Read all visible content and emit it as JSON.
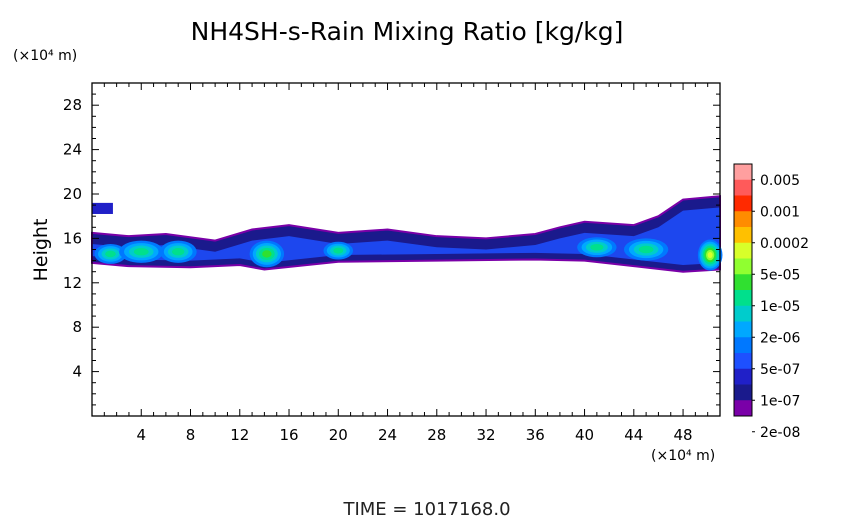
{
  "chart_data": {
    "type": "heatmap",
    "title": "NH4SH-s-Rain Mixing Ratio [kg/kg]",
    "ylabel": "Height",
    "y_unit": "(×10⁴ m)",
    "x_unit": "(×10⁴ m)",
    "xlim": [
      0,
      51
    ],
    "ylim": [
      0,
      30
    ],
    "x_ticks": [
      "4",
      "8",
      "12",
      "16",
      "20",
      "24",
      "28",
      "32",
      "36",
      "40",
      "44",
      "48"
    ],
    "y_ticks": [
      "4",
      "8",
      "12",
      "16",
      "20",
      "24",
      "28"
    ],
    "x_tick_values": [
      4,
      8,
      12,
      16,
      20,
      24,
      28,
      32,
      36,
      40,
      44,
      48
    ],
    "y_tick_values": [
      4,
      8,
      12,
      16,
      20,
      24,
      28
    ],
    "colorbar": {
      "labels": [
        "0.005",
        "0.001",
        "0.0002",
        "5e-05",
        "1e-05",
        "2e-06",
        "5e-07",
        "1e-07",
        "2e-08"
      ],
      "colors": [
        "#ff9f9f",
        "#ff5a5a",
        "#ff2a00",
        "#ff8c00",
        "#ffc000",
        "#d8ff2a",
        "#90ff30",
        "#30e030",
        "#00e08c",
        "#00cccc",
        "#00a8ff",
        "#0078ff",
        "#1e50ff",
        "#2020c8",
        "#1a1a8c",
        "#7a00a8"
      ]
    },
    "layer": {
      "description_values": "cloud layer between about 13 and 17 height units across the domain, thicker near x=40-51",
      "outline": [
        [
          0,
          13.8
        ],
        [
          3,
          13.5
        ],
        [
          8,
          13.4
        ],
        [
          12,
          13.6
        ],
        [
          14,
          13.2
        ],
        [
          20,
          13.9
        ],
        [
          28,
          14.0
        ],
        [
          36,
          14.1
        ],
        [
          40,
          14.0
        ],
        [
          44,
          13.5
        ],
        [
          48,
          13.0
        ],
        [
          51,
          13.2
        ]
      ],
      "top": [
        [
          0,
          16.5
        ],
        [
          3,
          16.2
        ],
        [
          6,
          16.4
        ],
        [
          10,
          15.8
        ],
        [
          13,
          16.8
        ],
        [
          16,
          17.2
        ],
        [
          20,
          16.5
        ],
        [
          24,
          16.8
        ],
        [
          28,
          16.2
        ],
        [
          32,
          16.0
        ],
        [
          36,
          16.4
        ],
        [
          38,
          17.0
        ],
        [
          40,
          17.5
        ],
        [
          44,
          17.2
        ],
        [
          46,
          18.0
        ],
        [
          48,
          19.5
        ],
        [
          51,
          19.8
        ]
      ],
      "cores": [
        {
          "x": 1.5,
          "y": 14.6,
          "rx": 1.3,
          "ry": 0.9,
          "level": 7
        },
        {
          "x": 4.0,
          "y": 14.8,
          "rx": 1.8,
          "ry": 1.0,
          "level": 7
        },
        {
          "x": 7.0,
          "y": 14.8,
          "rx": 1.5,
          "ry": 1.0,
          "level": 7
        },
        {
          "x": 14.2,
          "y": 14.6,
          "rx": 1.4,
          "ry": 1.2,
          "level": 8
        },
        {
          "x": 20.0,
          "y": 14.9,
          "rx": 1.2,
          "ry": 0.8,
          "level": 7
        },
        {
          "x": 41.0,
          "y": 15.2,
          "rx": 1.6,
          "ry": 0.9,
          "level": 7
        },
        {
          "x": 45.0,
          "y": 15.0,
          "rx": 1.8,
          "ry": 1.0,
          "level": 7
        },
        {
          "x": 50.2,
          "y": 14.5,
          "rx": 1.0,
          "ry": 1.4,
          "level": 10
        }
      ]
    },
    "annotation": "TIME  =  1017168.0"
  }
}
